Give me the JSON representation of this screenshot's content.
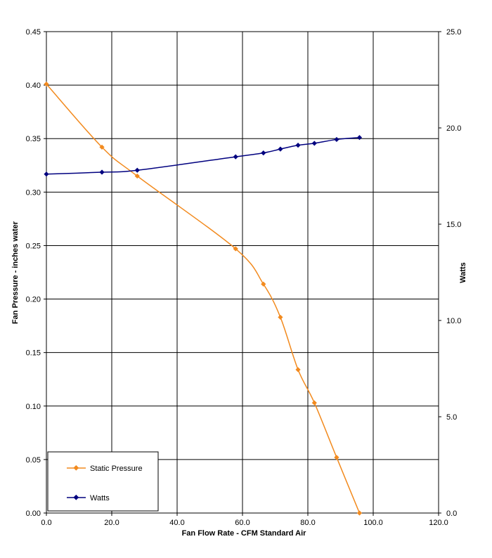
{
  "chart_data": {
    "type": "line",
    "title": "",
    "xlabel": "Fan Flow Rate - CFM Standard Air",
    "ylabel": "Fan Pressure - inches water",
    "y2label": "Watts",
    "xlim": [
      0,
      120
    ],
    "ylim": [
      0,
      0.45
    ],
    "y2lim": [
      0,
      25
    ],
    "grid": true,
    "legend_position": "bottom-left",
    "x_ticks": [
      "0.0",
      "20.0",
      "40.0",
      "60.0",
      "80.0",
      "100.0",
      "120.0"
    ],
    "y_ticks": [
      "0.00",
      "0.05",
      "0.10",
      "0.15",
      "0.20",
      "0.25",
      "0.30",
      "0.35",
      "0.40",
      "0.45"
    ],
    "y2_ticks": [
      "0.0",
      "5.0",
      "10.0",
      "15.0",
      "20.0",
      "25.0"
    ],
    "series": [
      {
        "name": "Static Pressure",
        "axis": "left",
        "color": "#f28a1e",
        "x": [
          0,
          17,
          27.8,
          57.9,
          66.4,
          71.6,
          77.0,
          82.0,
          88.8,
          95.8
        ],
        "y": [
          0.401,
          0.342,
          0.315,
          0.247,
          0.214,
          0.183,
          0.134,
          0.103,
          0.052,
          0.0
        ]
      },
      {
        "name": "Watts",
        "axis": "right",
        "color": "#00007f",
        "x": [
          0,
          17,
          27.8,
          57.9,
          66.4,
          71.6,
          77.0,
          82.0,
          88.8,
          95.8
        ],
        "y": [
          17.6,
          17.7,
          17.8,
          18.5,
          18.7,
          18.9,
          19.1,
          19.2,
          19.4,
          19.5
        ]
      }
    ]
  }
}
